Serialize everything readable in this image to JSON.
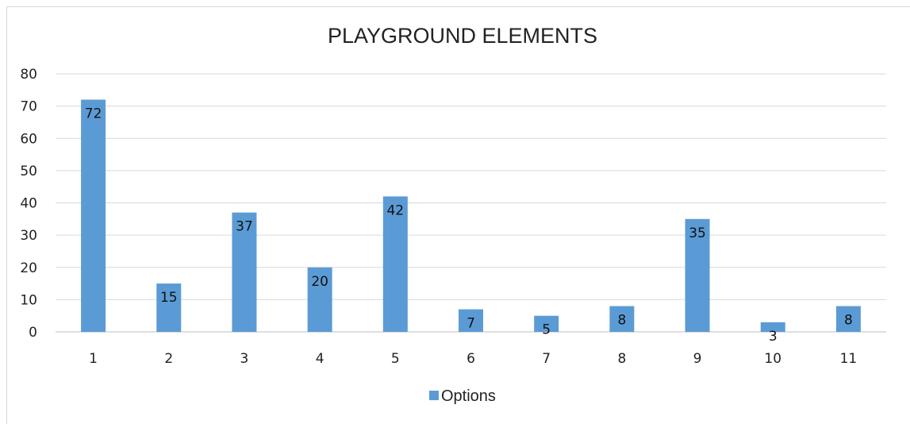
{
  "chart_data": {
    "type": "bar",
    "title": "PLAYGROUND ELEMENTS",
    "categories": [
      "1",
      "2",
      "3",
      "4",
      "5",
      "6",
      "7",
      "8",
      "9",
      "10",
      "11"
    ],
    "series": [
      {
        "name": "Options",
        "values": [
          72,
          15,
          37,
          20,
          42,
          7,
          5,
          8,
          35,
          3,
          8
        ]
      }
    ],
    "ylim": [
      0,
      80
    ],
    "yticks": [
      0,
      10,
      20,
      30,
      40,
      50,
      60,
      70,
      80
    ],
    "xlabel": "",
    "ylabel": "",
    "grid": true,
    "legend": "bottom",
    "data_labels": true,
    "bar_color": "#5b9bd5"
  }
}
